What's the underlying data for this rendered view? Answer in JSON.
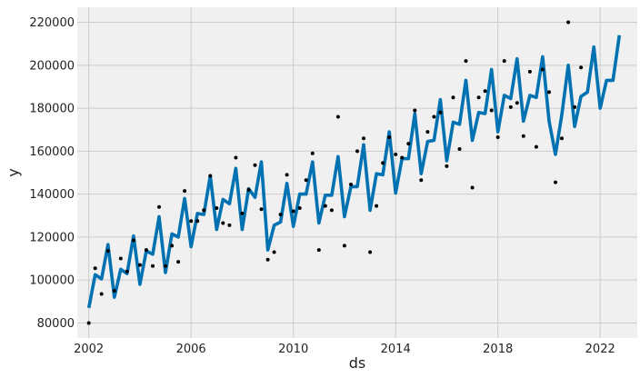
{
  "chart_data": {
    "type": "line",
    "title": "",
    "xlabel": "ds",
    "ylabel": "y",
    "xlim": [
      2001.55,
      2023.45
    ],
    "ylim": [
      73000,
      227000
    ],
    "grid": true,
    "x_ticks": [
      {
        "value": 2002,
        "label": "2002"
      },
      {
        "value": 2006,
        "label": "2006"
      },
      {
        "value": 2010,
        "label": "2010"
      },
      {
        "value": 2014,
        "label": "2014"
      },
      {
        "value": 2018,
        "label": "2018"
      },
      {
        "value": 2022,
        "label": "2022"
      }
    ],
    "y_ticks": [
      {
        "value": 80000,
        "label": "80000"
      },
      {
        "value": 100000,
        "label": "100000"
      },
      {
        "value": 120000,
        "label": "120000"
      },
      {
        "value": 140000,
        "label": "140000"
      },
      {
        "value": 160000,
        "label": "160000"
      },
      {
        "value": 180000,
        "label": "180000"
      },
      {
        "value": 200000,
        "label": "200000"
      },
      {
        "value": 220000,
        "label": "220000"
      }
    ],
    "colors": {
      "background": "#f0f0f0",
      "grid": "#cbcbcb",
      "forecast_line": "#0072b2",
      "observed_points": "#000000"
    },
    "series": [
      {
        "kind": "line",
        "x": [
          2002.0,
          2002.25,
          2002.5,
          2002.75,
          2003.0,
          2003.25,
          2003.5,
          2003.75,
          2004.0,
          2004.25,
          2004.5,
          2004.75,
          2005.0,
          2005.25,
          2005.5,
          2005.75,
          2006.0,
          2006.25,
          2006.5,
          2006.75,
          2007.0,
          2007.25,
          2007.5,
          2007.75,
          2008.0,
          2008.25,
          2008.5,
          2008.75,
          2009.0,
          2009.25,
          2009.5,
          2009.75,
          2010.0,
          2010.25,
          2010.5,
          2010.75,
          2011.0,
          2011.25,
          2011.5,
          2011.75,
          2012.0,
          2012.25,
          2012.5,
          2012.75,
          2013.0,
          2013.25,
          2013.5,
          2013.75,
          2014.0,
          2014.25,
          2014.5,
          2014.75,
          2015.0,
          2015.25,
          2015.5,
          2015.75,
          2016.0,
          2016.25,
          2016.5,
          2016.75,
          2017.0,
          2017.25,
          2017.5,
          2017.75,
          2018.0,
          2018.25,
          2018.5,
          2018.75,
          2019.0,
          2019.25,
          2019.5,
          2019.75,
          2020.0,
          2020.25,
          2020.5,
          2020.75,
          2021.0,
          2021.25,
          2021.5,
          2021.75,
          2022.0,
          2022.25,
          2022.5,
          2022.75
        ],
        "y": [
          87000,
          102500,
          100500,
          116500,
          92000,
          105000,
          103000,
          120500,
          98000,
          113500,
          112000,
          129500,
          103500,
          121500,
          120000,
          138000,
          115500,
          131000,
          130500,
          148500,
          123500,
          137500,
          135500,
          152000,
          123500,
          142500,
          138500,
          155000,
          114000,
          125500,
          127000,
          145000,
          125000,
          140000,
          140000,
          155000,
          126500,
          139500,
          139500,
          157500,
          129500,
          143500,
          143500,
          163000,
          132500,
          149500,
          149000,
          169000,
          140500,
          156500,
          156500,
          177500,
          149500,
          164500,
          165000,
          184000,
          155500,
          173500,
          172500,
          193000,
          165000,
          178000,
          177500,
          198000,
          169000,
          186000,
          184500,
          203000,
          174000,
          186000,
          185000,
          204000,
          174000,
          158500,
          177000,
          200000,
          171500,
          185500,
          187500,
          208500,
          180000,
          193000,
          193000,
          214000
        ]
      },
      {
        "kind": "scatter",
        "x": [
          2002.0,
          2002.25,
          2002.5,
          2002.75,
          2003.0,
          2003.25,
          2003.5,
          2003.75,
          2004.0,
          2004.25,
          2004.5,
          2004.75,
          2005.0,
          2005.25,
          2005.5,
          2005.75,
          2006.0,
          2006.25,
          2006.5,
          2006.75,
          2007.0,
          2007.25,
          2007.5,
          2007.75,
          2008.0,
          2008.25,
          2008.5,
          2008.75,
          2009.0,
          2009.25,
          2009.5,
          2009.75,
          2010.0,
          2010.25,
          2010.5,
          2010.75,
          2011.0,
          2011.25,
          2011.5,
          2011.75,
          2012.0,
          2012.25,
          2012.5,
          2012.75,
          2013.0,
          2013.25,
          2013.5,
          2013.75,
          2014.0,
          2014.25,
          2014.5,
          2014.75,
          2015.0,
          2015.25,
          2015.5,
          2015.75,
          2016.0,
          2016.25,
          2016.5,
          2016.75,
          2017.0,
          2017.25,
          2017.5,
          2017.75,
          2018.0,
          2018.25,
          2018.5,
          2018.75,
          2019.0,
          2019.25,
          2019.5,
          2019.75,
          2020.0,
          2020.25,
          2020.5,
          2020.75,
          2021.0,
          2021.25
        ],
        "y": [
          80000,
          105500,
          93500,
          113500,
          95000,
          110000,
          104000,
          118500,
          107000,
          114000,
          106500,
          134000,
          106500,
          116000,
          108500,
          141500,
          127500,
          127500,
          132500,
          148500,
          133500,
          126500,
          125500,
          157000,
          131000,
          142000,
          153500,
          133000,
          109500,
          113000,
          130500,
          149000,
          132000,
          133500,
          146500,
          159000,
          114000,
          134500,
          132500,
          176000,
          116000,
          144500,
          160000,
          166000,
          113000,
          134500,
          154500,
          166500,
          158500,
          157000,
          163500,
          179000,
          146500,
          169000,
          176000,
          178000,
          153000,
          185000,
          161000,
          202000,
          143000,
          185000,
          188000,
          179000,
          166500,
          202000,
          180500,
          182500,
          167000,
          197000,
          162000,
          198000,
          187500,
          145500,
          166000,
          220000,
          180500,
          199000
        ]
      }
    ]
  }
}
